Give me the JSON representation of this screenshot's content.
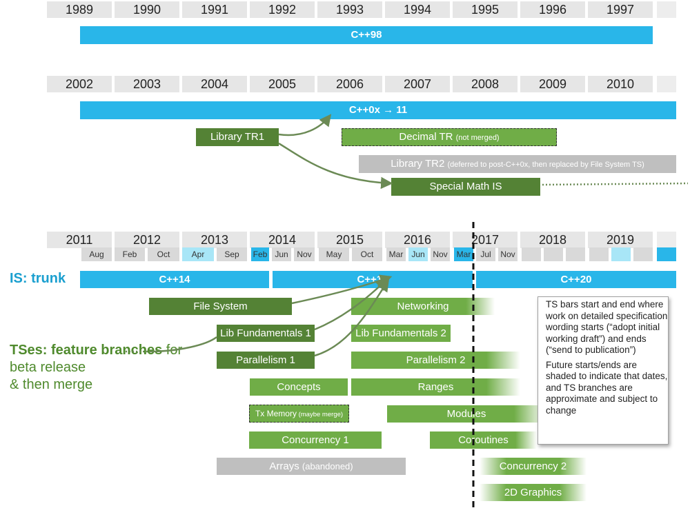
{
  "row1": {
    "years": [
      "1989",
      "1990",
      "1991",
      "1992",
      "1993",
      "1994",
      "1995",
      "1996",
      "1997"
    ],
    "bar": "C++98"
  },
  "row2": {
    "years": [
      "2002",
      "2003",
      "2004",
      "2005",
      "2006",
      "2007",
      "2008",
      "2009",
      "2010"
    ],
    "bar": "C++0x → 11",
    "library_tr1": "Library TR1",
    "decimal_tr": "Decimal TR",
    "decimal_tr_note": "(not merged)",
    "library_tr2": "Library TR2",
    "library_tr2_note": "(deferred to post-C++0x, then replaced by File System TS)",
    "special_math": "Special Math IS"
  },
  "row3": {
    "years": [
      "2011",
      "2012",
      "2013",
      "2014",
      "2015",
      "2016",
      "2017",
      "2018",
      "2019"
    ],
    "months": [
      "Aug",
      "Feb",
      "Oct",
      "Apr",
      "Sep",
      "Feb",
      "Jun",
      "Nov",
      "May",
      "Oct",
      "Mar",
      "Jun",
      "Nov",
      "Mar",
      "Jul",
      "Nov"
    ],
    "trunk_label": "IS: trunk",
    "cpp14": "C++14",
    "cpp17": "C++17",
    "cpp20": "C++20"
  },
  "ts_label": {
    "strong": "TSes: feature branches",
    "rest_1": " for",
    "line2": "beta release",
    "line3": "& then merge"
  },
  "ts": {
    "file_system": "File System",
    "networking": "Networking",
    "lib_fund_1": "Lib Fundamentals 1",
    "lib_fund_2": "Lib Fundamentals 2",
    "parallelism_1": "Parallelism 1",
    "parallelism_2": "Parallelism 2",
    "concepts": "Concepts",
    "ranges": "Ranges",
    "tx_memory": "Tx Memory",
    "tx_memory_note": "(maybe merge)",
    "modules": "Modules",
    "concurrency_1": "Concurrency 1",
    "coroutines": "Coroutines",
    "arrays": "Arrays",
    "arrays_note": "(abandoned)",
    "concurrency_2": "Concurrency 2",
    "graphics_2d": "2D Graphics"
  },
  "note": {
    "p1": "TS bars start and end where work on detailed specification wording starts (“adopt initial working draft”) and ends (“send to publication”)",
    "p2": "Future starts/ends are shaded to indicate that dates, and TS branches are approximate and subject to change"
  },
  "colors": {
    "is_cyan": "#29b6e9",
    "ts_dark_green": "#548235",
    "ts_light_green": "#70ad47",
    "abandoned_gray": "#bfbfbf",
    "month_highlight_light": "#a8e6f7",
    "month_highlight_dark": "#29b6e9"
  }
}
